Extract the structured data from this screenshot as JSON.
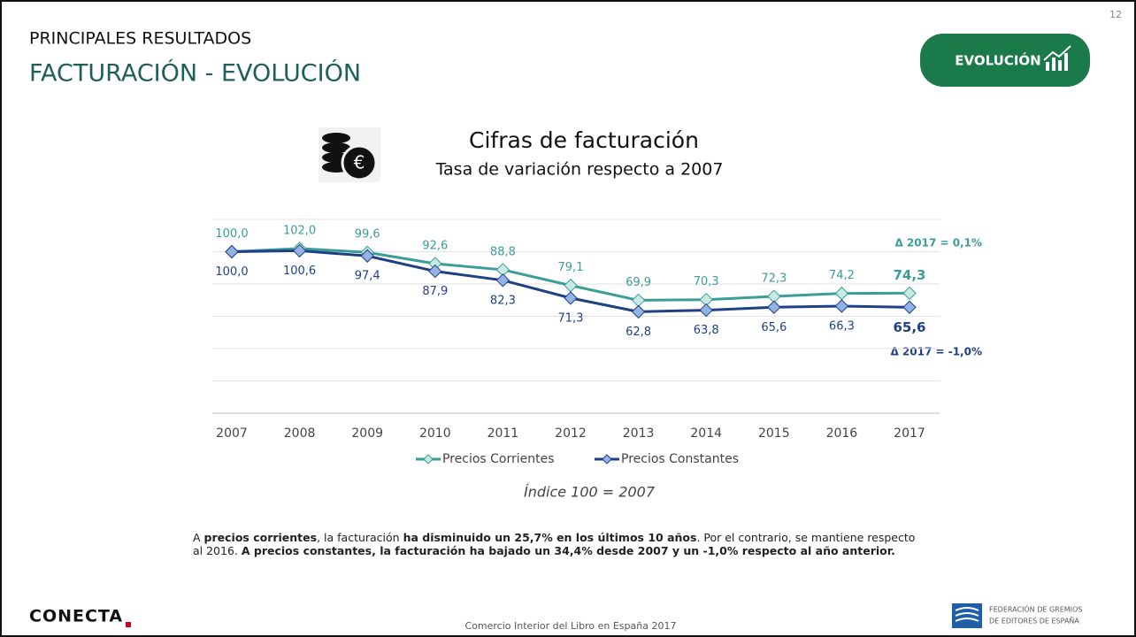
{
  "header": {
    "kicker": "PRINCIPALES RESULTADOS",
    "title": "FACTURACIÓN - EVOLUCIÓN",
    "badge": "EVOLUCIÓN",
    "page_number": "12"
  },
  "chart_data": {
    "type": "line",
    "title": "Cifras de facturación",
    "subtitle": "Tasa de variación respecto a 2007",
    "categories": [
      "2007",
      "2008",
      "2009",
      "2010",
      "2011",
      "2012",
      "2013",
      "2014",
      "2015",
      "2016",
      "2017"
    ],
    "series": [
      {
        "name": "Precios Corrientes",
        "color": "#3a9e96",
        "marker_fill": "#c8eae2",
        "values": [
          100.0,
          102.0,
          99.6,
          92.6,
          88.8,
          79.1,
          69.9,
          70.3,
          72.3,
          74.2,
          74.3
        ],
        "value_labels": [
          "100,0",
          "102,0",
          "99,6",
          "92,6",
          "88,8",
          "79,1",
          "69,9",
          "70,3",
          "72,3",
          "74,2",
          "74,3"
        ]
      },
      {
        "name": "Precios Constantes",
        "color": "#1f3f87",
        "marker_fill": "#93b3e3",
        "values": [
          100.0,
          100.6,
          97.4,
          87.9,
          82.3,
          71.3,
          62.8,
          63.8,
          65.6,
          66.3,
          65.6
        ],
        "value_labels": [
          "100,0",
          "100,6",
          "97,4",
          "87,9",
          "82,3",
          "71,3",
          "62,8",
          "63,8",
          "65,6",
          "66,3",
          "65,6"
        ]
      }
    ],
    "ylim": [
      0,
      120
    ],
    "yticks": [
      0,
      20,
      40,
      60,
      80,
      100,
      120
    ],
    "grid": true,
    "legend": "bottom",
    "annotations": [
      "Δ 2017 = 0,1%",
      "Δ 2017 = -1,0%"
    ],
    "note": "Índice 100 = 2007"
  },
  "paragraph": [
    {
      "text": "A ",
      "bold": false
    },
    {
      "text": "precios corrientes",
      "bold": true
    },
    {
      "text": ", la facturación ",
      "bold": false
    },
    {
      "text": "ha disminuido un 25,7% en los últimos 10 años",
      "bold": true
    },
    {
      "text": ". Por el contrario, se mantiene respecto al 2016. ",
      "bold": false
    },
    {
      "text": "A precios constantes, la facturación ha bajado un 34,4% desde 2007 y un -1,0% respecto al año anterior.",
      "bold": true
    }
  ],
  "footer": {
    "logo": "CONECTA",
    "source": "Comercio Interior del Libro en España 2017",
    "org_line1": "FEDERACIÓN DE GREMIOS",
    "org_line2": "DE EDITORES DE ESPAÑA"
  }
}
